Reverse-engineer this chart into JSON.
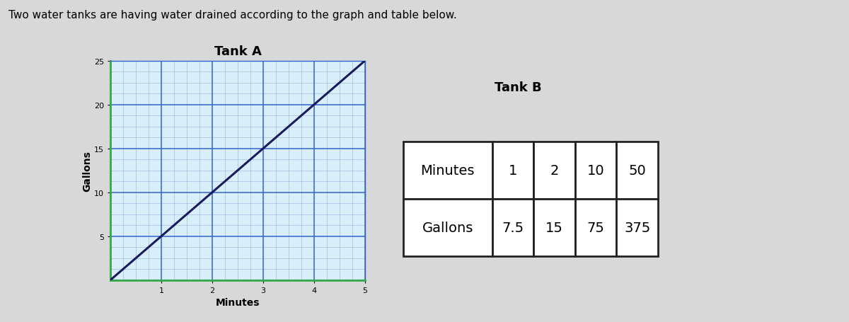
{
  "description": "Two water tanks are having water drained according to the graph and table below.",
  "tank_a_title": "Tank A",
  "tank_b_title": "Tank B",
  "line_x": [
    0,
    5
  ],
  "line_y": [
    0,
    25
  ],
  "x_label": "Minutes",
  "y_label": "Gallons",
  "x_ticks": [
    1,
    2,
    3,
    4,
    5
  ],
  "y_ticks": [
    5,
    10,
    15,
    20,
    25
  ],
  "x_lim": [
    0,
    5
  ],
  "y_lim": [
    0,
    25
  ],
  "minor_x_step": 0.25,
  "minor_y_step": 1.25,
  "major_grid_color": "#3366cc",
  "minor_grid_color": "#88aadd",
  "line_color": "#1a1a5e",
  "plot_bg": "#d8eef8",
  "fig_bg": "#d8d8d8",
  "axis_spine_color": "#2255bb",
  "table_header_row": [
    "Minutes",
    "1",
    "2",
    "10",
    "50"
  ],
  "table_data_row": [
    "Gallons",
    "7.5",
    "15",
    "75",
    "375"
  ],
  "description_fontsize": 11,
  "title_fontsize": 13,
  "axis_label_fontsize": 10,
  "tick_fontsize": 8,
  "table_fontsize": 14,
  "tank_b_title_fontsize": 13
}
